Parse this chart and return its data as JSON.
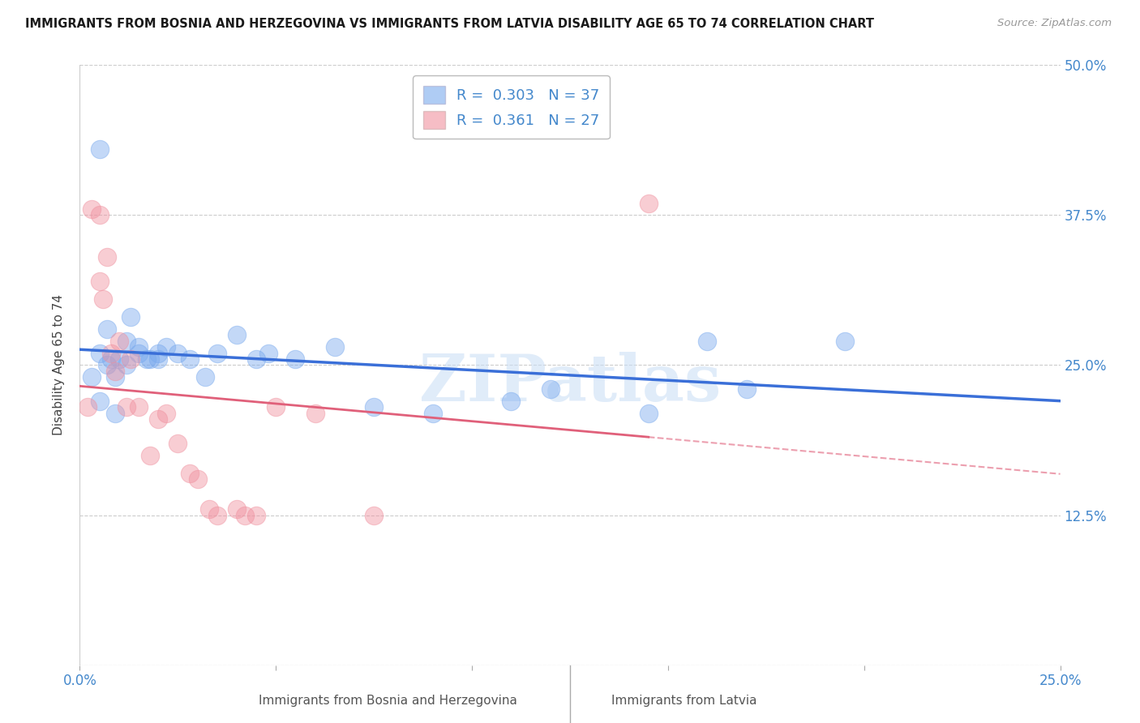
{
  "title": "IMMIGRANTS FROM BOSNIA AND HERZEGOVINA VS IMMIGRANTS FROM LATVIA DISABILITY AGE 65 TO 74 CORRELATION CHART",
  "source": "Source: ZipAtlas.com",
  "xlabel_bottom_bosnia": "Immigrants from Bosnia and Herzegovina",
  "xlabel_bottom_latvia": "Immigrants from Latvia",
  "ylabel": "Disability Age 65 to 74",
  "xlim": [
    0.0,
    0.25
  ],
  "ylim": [
    0.0,
    0.5
  ],
  "xticks": [
    0.0,
    0.05,
    0.1,
    0.15,
    0.2,
    0.25
  ],
  "yticks": [
    0.0,
    0.125,
    0.25,
    0.375,
    0.5
  ],
  "xtick_labels": [
    "0.0%",
    "",
    "",
    "",
    "",
    "25.0%"
  ],
  "ytick_labels": [
    "",
    "12.5%",
    "25.0%",
    "37.5%",
    "50.0%"
  ],
  "bosnia_R": 0.303,
  "bosnia_N": 37,
  "latvia_R": 0.361,
  "latvia_N": 27,
  "bosnia_color": "#7aaaee",
  "latvia_color": "#f0919f",
  "bosnia_line_color": "#3a6fd8",
  "latvia_line_color": "#e0607a",
  "watermark": "ZIPatlas",
  "bosnia_x": [
    0.003,
    0.005,
    0.005,
    0.007,
    0.007,
    0.008,
    0.009,
    0.009,
    0.01,
    0.012,
    0.012,
    0.013,
    0.015,
    0.015,
    0.017,
    0.018,
    0.02,
    0.02,
    0.022,
    0.025,
    0.028,
    0.032,
    0.035,
    0.04,
    0.045,
    0.048,
    0.055,
    0.065,
    0.075,
    0.09,
    0.11,
    0.12,
    0.145,
    0.16,
    0.17,
    0.195,
    0.005
  ],
  "bosnia_y": [
    0.24,
    0.26,
    0.22,
    0.28,
    0.25,
    0.255,
    0.24,
    0.21,
    0.255,
    0.27,
    0.25,
    0.29,
    0.265,
    0.26,
    0.255,
    0.255,
    0.26,
    0.255,
    0.265,
    0.26,
    0.255,
    0.24,
    0.26,
    0.275,
    0.255,
    0.26,
    0.255,
    0.265,
    0.215,
    0.21,
    0.22,
    0.23,
    0.21,
    0.27,
    0.23,
    0.27,
    0.43
  ],
  "latvia_x": [
    0.002,
    0.003,
    0.005,
    0.005,
    0.006,
    0.007,
    0.008,
    0.009,
    0.01,
    0.012,
    0.013,
    0.015,
    0.018,
    0.02,
    0.022,
    0.025,
    0.028,
    0.03,
    0.033,
    0.035,
    0.04,
    0.042,
    0.045,
    0.05,
    0.06,
    0.075,
    0.145
  ],
  "latvia_y": [
    0.215,
    0.38,
    0.375,
    0.32,
    0.305,
    0.34,
    0.26,
    0.245,
    0.27,
    0.215,
    0.255,
    0.215,
    0.175,
    0.205,
    0.21,
    0.185,
    0.16,
    0.155,
    0.13,
    0.125,
    0.13,
    0.125,
    0.125,
    0.215,
    0.21,
    0.125,
    0.385
  ]
}
